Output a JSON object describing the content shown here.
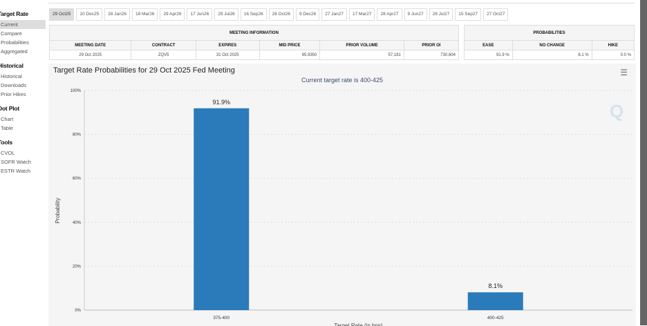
{
  "sidebar": {
    "sections": [
      {
        "title": "Target Rate",
        "items": [
          "Current",
          "Compare",
          "Probabilities",
          "Aggregated"
        ]
      },
      {
        "title": "Historical",
        "items": [
          "Historical",
          "Downloads",
          "Prior Hikes"
        ]
      },
      {
        "title": "Dot Plot",
        "items": [
          "Chart",
          "Table"
        ]
      },
      {
        "title": "Tools",
        "items": [
          "CVOL",
          "SOFR Watch",
          "ESTR Watch"
        ]
      }
    ],
    "active": "Current"
  },
  "tabs": [
    "29 Oct25",
    "10 Dec25",
    "28 Jan26",
    "18 Mar26",
    "29 Apr26",
    "17 Jun26",
    "29 Jul26",
    "16 Sep26",
    "28 Oct26",
    "9 Dec26",
    "27 Jan27",
    "17 Mar27",
    "28 Apr27",
    "9 Jun27",
    "28 Jul27",
    "15 Sep27",
    "27 Oct27"
  ],
  "meeting": {
    "title": "MEETING INFORMATION",
    "headers": [
      "MEETING DATE",
      "CONTRACT",
      "EXPIRES",
      "MID PRICE",
      "PRIOR VOLUME",
      "PRIOR OI"
    ],
    "row": [
      "29 Oct 2025",
      "ZQV5",
      "31 Oct 2025",
      "95.9350",
      "57,181",
      "730,604"
    ]
  },
  "probabilities": {
    "title": "PROBABILITIES",
    "headers": [
      "EASE",
      "NO CHANGE",
      "HIKE"
    ],
    "row": [
      "91.9 %",
      "8.1 %",
      "0.0 %"
    ]
  },
  "chart_data": {
    "type": "bar",
    "title": "Target Rate Probabilities for 29 Oct 2025 Fed Meeting",
    "subtitle": "Current target rate is 400-425",
    "categories": [
      "375-400",
      "400-425"
    ],
    "values": [
      91.9,
      8.1
    ],
    "data_labels": [
      "91.9%",
      "8.1%"
    ],
    "xlabel": "Target Rate (in bps)",
    "ylabel": "Probability",
    "ylim": [
      0,
      100
    ],
    "yticks": [
      "0%",
      "20%",
      "40%",
      "60%",
      "80%",
      "100%"
    ],
    "grid": true,
    "bar_color": "#2b7bba"
  },
  "icons": {
    "menu": "hamburger-menu-icon",
    "watermark": "q-logo"
  }
}
